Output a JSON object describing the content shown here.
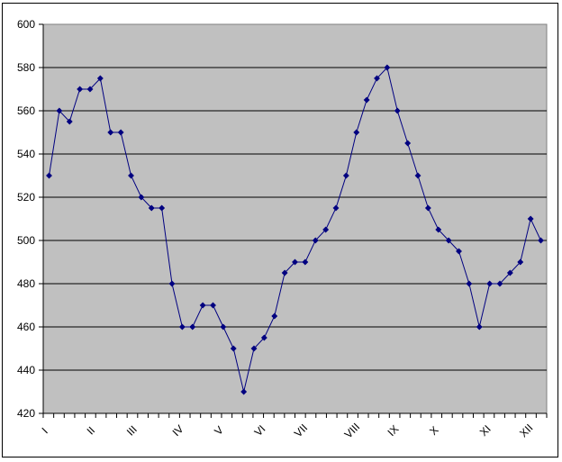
{
  "chart_data": {
    "type": "line",
    "title": "",
    "xlabel": "",
    "ylabel": "",
    "ylim": [
      420,
      600
    ],
    "yticks": [
      420,
      440,
      460,
      480,
      500,
      520,
      540,
      560,
      580,
      600
    ],
    "x_tick_labels": [
      {
        "label": "I",
        "index": 0
      },
      {
        "label": "II",
        "index": 4.5
      },
      {
        "label": "III",
        "index": 8.5
      },
      {
        "label": "IV",
        "index": 13
      },
      {
        "label": "V",
        "index": 17
      },
      {
        "label": "VI",
        "index": 21
      },
      {
        "label": "VII",
        "index": 25
      },
      {
        "label": "VIII",
        "index": 30
      },
      {
        "label": "IX",
        "index": 34
      },
      {
        "label": "X",
        "index": 38
      },
      {
        "label": "XI",
        "index": 43
      },
      {
        "label": "XII",
        "index": 47
      }
    ],
    "grid": true,
    "legend": "none",
    "series": [
      {
        "values": [
          530,
          560,
          555,
          570,
          570,
          575,
          550,
          550,
          530,
          520,
          515,
          515,
          480,
          460,
          460,
          470,
          470,
          460,
          450,
          430,
          450,
          455,
          465,
          485,
          490,
          490,
          500,
          505,
          515,
          530,
          550,
          565,
          575,
          580,
          560,
          545,
          530,
          515,
          505,
          500,
          495,
          480,
          460,
          480,
          480,
          485,
          490,
          510,
          500
        ]
      }
    ],
    "colors": {
      "plot_background": "#c0c0c0",
      "line": "#000080",
      "marker": "#000080",
      "gridline": "#000000"
    }
  }
}
